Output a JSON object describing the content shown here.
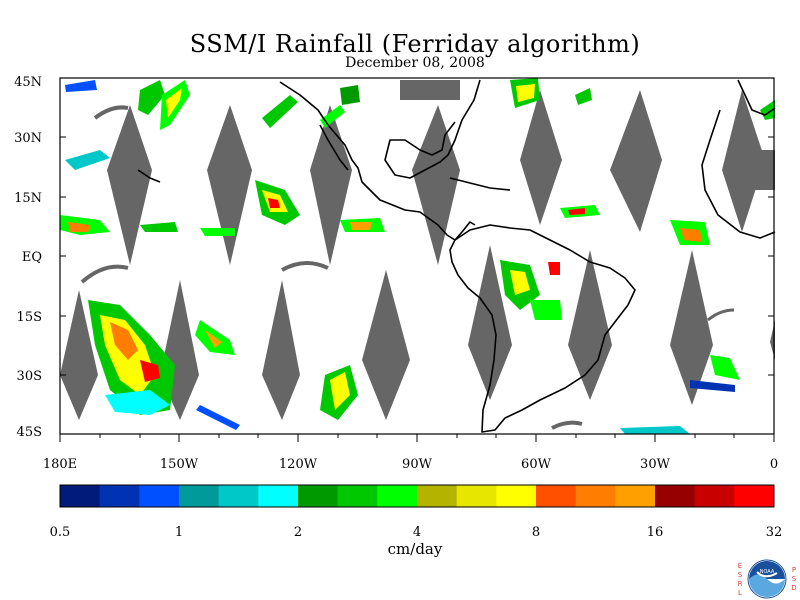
{
  "title": "SSM/I Rainfall (Ferriday algorithm)",
  "subtitle": "December 08, 2008",
  "lat_labels": [
    "45N",
    "30N",
    "15N",
    "EQ",
    "15S",
    "30S",
    "45S"
  ],
  "lon_labels": [
    "180E",
    "150W",
    "120W",
    "90W",
    "60W",
    "30W",
    "0"
  ],
  "colorbar": {
    "labels": [
      "0.5",
      "1",
      "2",
      "4",
      "8",
      "16",
      "32"
    ],
    "units": "cm/day",
    "colors": [
      "#001b7a",
      "#0032b4",
      "#0050ff",
      "#009a9a",
      "#00c8c8",
      "#00ffff",
      "#009a00",
      "#00c800",
      "#00ff00",
      "#b4b400",
      "#e6e600",
      "#ffff00",
      "#ff5000",
      "#ff7d00",
      "#ffa000",
      "#960000",
      "#c80000",
      "#ff0000"
    ]
  },
  "logo": {
    "left_letters": [
      "E",
      "S",
      "R",
      "L"
    ],
    "right_letters": [
      "P",
      "S",
      "D"
    ],
    "name": "NOAA"
  },
  "colors": {
    "swath_gap": "#666666",
    "land": "#000000",
    "plot_border": "#000000"
  }
}
